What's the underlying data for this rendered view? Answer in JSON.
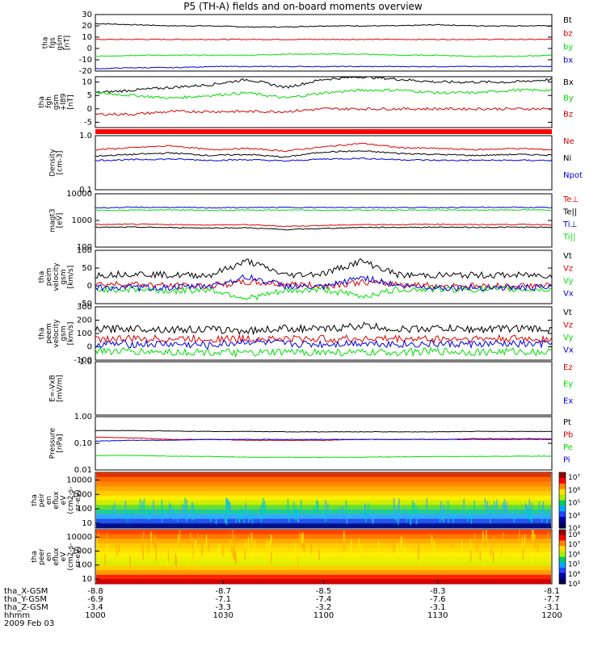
{
  "title": "P5 (TH-A) fields and on-board moments overview",
  "colors": {
    "black": "#000000",
    "red": "#dd0000",
    "green": "#00dd00",
    "blue": "#0000dd",
    "separator": "#ff0000"
  },
  "chart_data": [
    {
      "type": "line",
      "panel": "fgs",
      "ylabel": [
        "tha",
        "fgs",
        "gsm",
        "[nT]"
      ],
      "ylim": [
        -20,
        30
      ],
      "yticks": [
        "30",
        "20",
        "10",
        "0",
        "-10",
        "-20"
      ],
      "ytick_values": [
        30,
        20,
        10,
        0,
        -10,
        -20
      ],
      "series": [
        {
          "name": "Bt",
          "color": "black",
          "values": [
            22,
            21,
            20,
            20,
            19,
            19,
            20,
            20,
            20,
            21,
            20,
            20,
            20
          ]
        },
        {
          "name": "bz",
          "color": "red",
          "values": [
            8,
            8,
            8,
            8,
            8,
            8,
            8,
            8,
            8,
            8,
            8,
            8,
            8
          ]
        },
        {
          "name": "by",
          "color": "green",
          "values": [
            -7,
            -6,
            -6,
            -6,
            -6,
            -5,
            -5,
            -5,
            -6,
            -6,
            -7,
            -7,
            -6
          ]
        },
        {
          "name": "bx",
          "color": "blue",
          "values": [
            -18,
            -17,
            -17,
            -16,
            -16,
            -16,
            -16,
            -16,
            -16,
            -16,
            -16,
            -16,
            -16
          ]
        }
      ]
    },
    {
      "type": "line",
      "panel": "fgh",
      "ylabel": [
        "tha",
        "fgh",
        "gsm",
        "+l89",
        "[nT]"
      ],
      "ylim": [
        -7,
        12
      ],
      "yticks": [
        "10",
        "5",
        "0",
        "-5"
      ],
      "ytick_values": [
        10,
        5,
        0,
        -5
      ],
      "series": [
        {
          "name": "Bx",
          "color": "black",
          "values": [
            6,
            7,
            8,
            9,
            11,
            8,
            11,
            12,
            11,
            10,
            10,
            10,
            11
          ]
        },
        {
          "name": "By",
          "color": "green",
          "values": [
            6,
            5,
            4,
            5,
            6,
            4,
            6,
            7,
            7,
            6,
            6,
            7,
            7
          ]
        },
        {
          "name": "Bz",
          "color": "red",
          "values": [
            -2,
            -2,
            -1,
            -1,
            -1,
            -1,
            0,
            0,
            0,
            0,
            0,
            0,
            0
          ]
        }
      ]
    },
    {
      "type": "line",
      "panel": "density",
      "log": true,
      "ylabel": [
        "Density",
        "[cm-3]"
      ],
      "ylim": [
        0.1,
        1.0
      ],
      "yticks": [
        "1.0",
        "0.1"
      ],
      "ytick_values": [
        1.0,
        0.1
      ],
      "series": [
        {
          "name": "Ne",
          "color": "red",
          "values": [
            0.55,
            0.6,
            0.65,
            0.55,
            0.58,
            0.52,
            0.62,
            0.72,
            0.6,
            0.58,
            0.55,
            0.58,
            0.55
          ]
        },
        {
          "name": "Ni",
          "color": "black",
          "values": [
            0.42,
            0.45,
            0.48,
            0.43,
            0.45,
            0.4,
            0.5,
            0.52,
            0.47,
            0.45,
            0.43,
            0.45,
            0.44
          ]
        },
        {
          "name": "Npot",
          "color": "blue",
          "values": [
            0.35,
            0.36,
            0.37,
            0.35,
            0.36,
            0.34,
            0.37,
            0.38,
            0.36,
            0.35,
            0.35,
            0.35,
            0.35
          ]
        }
      ]
    },
    {
      "type": "line",
      "panel": "temperature",
      "log": true,
      "ylabel": [
        "magt3",
        "[eV]"
      ],
      "ylim": [
        100,
        10000
      ],
      "yticks": [
        "10000",
        "1000",
        "100"
      ],
      "ytick_values": [
        10000,
        1000,
        100
      ],
      "series": [
        {
          "name": "Te⊥",
          "color": "red",
          "values": [
            700,
            720,
            700,
            680,
            690,
            600,
            650,
            700,
            700,
            720,
            700,
            710,
            700
          ]
        },
        {
          "name": "Te||",
          "color": "black",
          "values": [
            550,
            560,
            540,
            520,
            530,
            450,
            500,
            550,
            550,
            560,
            550,
            560,
            550
          ]
        },
        {
          "name": "Ti⊥",
          "color": "blue",
          "values": [
            3000,
            3100,
            3100,
            3000,
            3050,
            3100,
            3050,
            3100,
            3050,
            3050,
            3100,
            3100,
            3050
          ]
        },
        {
          "name": "Ti||",
          "color": "green",
          "values": [
            2400,
            2450,
            2500,
            2400,
            2450,
            2450,
            2400,
            2450,
            2450,
            2450,
            2450,
            2500,
            2450
          ]
        }
      ]
    },
    {
      "type": "line",
      "panel": "peim-velocity",
      "ylabel": [
        "tha",
        "peim",
        "velocity",
        "gsm",
        "[km/s]"
      ],
      "ylim": [
        -50,
        100
      ],
      "yticks": [
        "100",
        "50",
        "0",
        "-50"
      ],
      "ytick_values": [
        100,
        50,
        0,
        -50
      ],
      "series": [
        {
          "name": "Vt",
          "color": "black",
          "values": [
            30,
            35,
            30,
            30,
            70,
            30,
            35,
            70,
            30,
            30,
            30,
            30,
            30
          ]
        },
        {
          "name": "Vz",
          "color": "red",
          "values": [
            5,
            5,
            0,
            0,
            10,
            5,
            0,
            10,
            5,
            0,
            0,
            0,
            0
          ]
        },
        {
          "name": "Vy",
          "color": "green",
          "values": [
            -10,
            -10,
            -15,
            -10,
            -35,
            -15,
            -10,
            -30,
            -10,
            -10,
            -10,
            -10,
            -10
          ]
        },
        {
          "name": "Vx",
          "color": "blue",
          "values": [
            -5,
            -5,
            -5,
            0,
            25,
            0,
            -5,
            25,
            0,
            -5,
            -5,
            -5,
            -5
          ]
        }
      ]
    },
    {
      "type": "line",
      "panel": "peem-velocity",
      "ylabel": [
        "tha",
        "peem",
        "velocity",
        "gsm",
        "[km/s]"
      ],
      "ylim": [
        -100,
        300
      ],
      "yticks": [
        "300",
        "200",
        "100",
        "0",
        "-100"
      ],
      "ytick_values": [
        300,
        200,
        100,
        0,
        -100
      ],
      "series": [
        {
          "name": "Vt",
          "color": "black",
          "values": [
            130,
            140,
            130,
            130,
            120,
            140,
            130,
            160,
            130,
            140,
            130,
            140,
            130
          ]
        },
        {
          "name": "Vz",
          "color": "red",
          "values": [
            60,
            60,
            60,
            60,
            60,
            60,
            60,
            60,
            60,
            60,
            60,
            60,
            60
          ]
        },
        {
          "name": "Vy",
          "color": "green",
          "values": [
            -30,
            -35,
            -40,
            -40,
            -50,
            -40,
            -40,
            -45,
            -40,
            -35,
            -40,
            -35,
            -40
          ]
        },
        {
          "name": "Vx",
          "color": "blue",
          "values": [
            20,
            20,
            20,
            10,
            40,
            20,
            20,
            30,
            20,
            20,
            20,
            20,
            20
          ]
        }
      ]
    },
    {
      "type": "line",
      "panel": "efield",
      "ylabel": [
        "E=-VxB",
        "[mV/m]"
      ],
      "ylim": [
        -1,
        1
      ],
      "yticks": [
        "1.0"
      ],
      "ytick_values": [
        1.0
      ],
      "series": [
        {
          "name": "Ez",
          "color": "red",
          "values": []
        },
        {
          "name": "Ey",
          "color": "green",
          "values": []
        },
        {
          "name": "Ex",
          "color": "blue",
          "values": []
        }
      ]
    },
    {
      "type": "line",
      "panel": "pressure",
      "log": true,
      "ylabel": [
        "Pressure",
        "[nPa]"
      ],
      "ylim": [
        0.01,
        1.0
      ],
      "yticks": [
        "1.00",
        "0.10",
        "0.01"
      ],
      "ytick_values": [
        1.0,
        0.1,
        0.01
      ],
      "series": [
        {
          "name": "Pt",
          "color": "black",
          "values": [
            0.3,
            0.3,
            0.29,
            0.28,
            0.28,
            0.27,
            0.27,
            0.27,
            0.27,
            0.27,
            0.28,
            0.28,
            0.28
          ]
        },
        {
          "name": "Pb",
          "color": "red",
          "values": [
            0.17,
            0.16,
            0.14,
            0.14,
            0.13,
            0.13,
            0.13,
            0.14,
            0.14,
            0.14,
            0.15,
            0.15,
            0.15
          ]
        },
        {
          "name": "Pe",
          "color": "green",
          "values": [
            0.035,
            0.035,
            0.033,
            0.032,
            0.03,
            0.03,
            0.03,
            0.03,
            0.031,
            0.032,
            0.032,
            0.033,
            0.033
          ]
        },
        {
          "name": "Pi",
          "color": "blue",
          "values": [
            0.12,
            0.13,
            0.13,
            0.14,
            0.14,
            0.14,
            0.14,
            0.14,
            0.14,
            0.14,
            0.14,
            0.14,
            0.14
          ]
        }
      ]
    },
    {
      "type": "heatmap",
      "panel": "peir-spectrogram",
      "ylabel": [
        "tha",
        "peir",
        "en",
        "eflux",
        "eV",
        "(cm2-s-",
        "sr-eV)"
      ],
      "yticks": [
        "10000",
        "1000",
        "100",
        "10"
      ],
      "ytick_values": [
        10000,
        1000,
        100,
        10
      ],
      "colorbar": [
        "10⁷",
        "10⁶",
        "10⁵",
        "10⁴",
        "10³"
      ]
    },
    {
      "type": "heatmap",
      "panel": "peer-spectrogram",
      "ylabel": [
        "tha",
        "peer",
        "en",
        "eflux",
        "eV",
        "(cm2-s-",
        "sr-eV)"
      ],
      "yticks": [
        "10000",
        "1000",
        "100",
        "10"
      ],
      "ytick_values": [
        10000,
        1000,
        100,
        10
      ],
      "colorbar": [
        "10⁸",
        "10⁷",
        "10⁶",
        "10⁵",
        "10⁴",
        "10³"
      ]
    }
  ],
  "xaxis": {
    "rows": [
      {
        "label": "tha_X-GSM",
        "values": [
          "-8.8",
          "-8.7",
          "-8.5",
          "-8.3",
          "-8.1"
        ]
      },
      {
        "label": "tha_Y-GSM",
        "values": [
          "-6.9",
          "-7.1",
          "-7.4",
          "-7.6",
          "-7.7"
        ]
      },
      {
        "label": "tha_Z-GSM",
        "values": [
          "-3.4",
          "-3.3",
          "-3.2",
          "-3.1",
          "-3.1"
        ]
      },
      {
        "label": "hhmm",
        "values": [
          "1000",
          "1030",
          "1100",
          "1130",
          "1200"
        ]
      }
    ],
    "date": "2009 Feb 03"
  }
}
